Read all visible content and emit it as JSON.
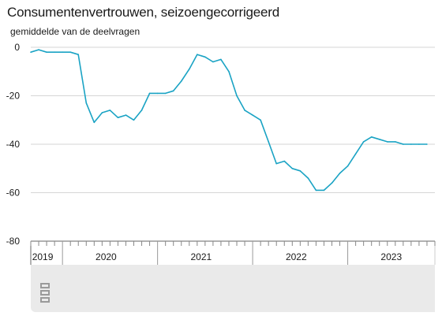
{
  "chart_data": {
    "type": "line",
    "title": "Consumentenvertrouwen, seizoengecorrigeerd",
    "subtitle": "gemiddelde van de deelvragen",
    "ylim": [
      -80,
      0
    ],
    "yticks": [
      0,
      -20,
      -40,
      -60,
      -80
    ],
    "grid": true,
    "x_tick_labels": [
      "2019",
      "2020",
      "2021",
      "2022",
      "2023"
    ],
    "x_range": [
      "2019-09",
      "2023-12"
    ],
    "line_color": "#1aa3c4",
    "series": [
      {
        "x": [
          "2019-09",
          "2019-10",
          "2019-11",
          "2019-12",
          "2020-01",
          "2020-02",
          "2020-03",
          "2020-04",
          "2020-05",
          "2020-06",
          "2020-07",
          "2020-08",
          "2020-09",
          "2020-10",
          "2020-11",
          "2020-12",
          "2021-01",
          "2021-02",
          "2021-03",
          "2021-04",
          "2021-05",
          "2021-06",
          "2021-07",
          "2021-08",
          "2021-09",
          "2021-10",
          "2021-11",
          "2021-12",
          "2022-01",
          "2022-02",
          "2022-03",
          "2022-04",
          "2022-05",
          "2022-06",
          "2022-07",
          "2022-08",
          "2022-09",
          "2022-10",
          "2022-11",
          "2022-12",
          "2023-01",
          "2023-02",
          "2023-03",
          "2023-04",
          "2023-05",
          "2023-06",
          "2023-07",
          "2023-08",
          "2023-09",
          "2023-10",
          "2023-11"
        ],
        "values": [
          -2,
          -1,
          -2,
          -2,
          -2,
          -2,
          -3,
          -23,
          -31,
          -27,
          -26,
          -29,
          -28,
          -30,
          -26,
          -19,
          -19,
          -19,
          -18,
          -14,
          -9,
          -3,
          -4,
          -6,
          -5,
          -10,
          -20,
          -26,
          -28,
          -30,
          -39,
          -48,
          -47,
          -50,
          -51,
          -54,
          -59,
          -59,
          -56,
          -52,
          -49,
          -44,
          -39,
          -37,
          -38,
          -39,
          -39,
          -40,
          -40,
          -40,
          -40
        ]
      }
    ]
  },
  "footer": {
    "logo": "cbs-logo"
  }
}
